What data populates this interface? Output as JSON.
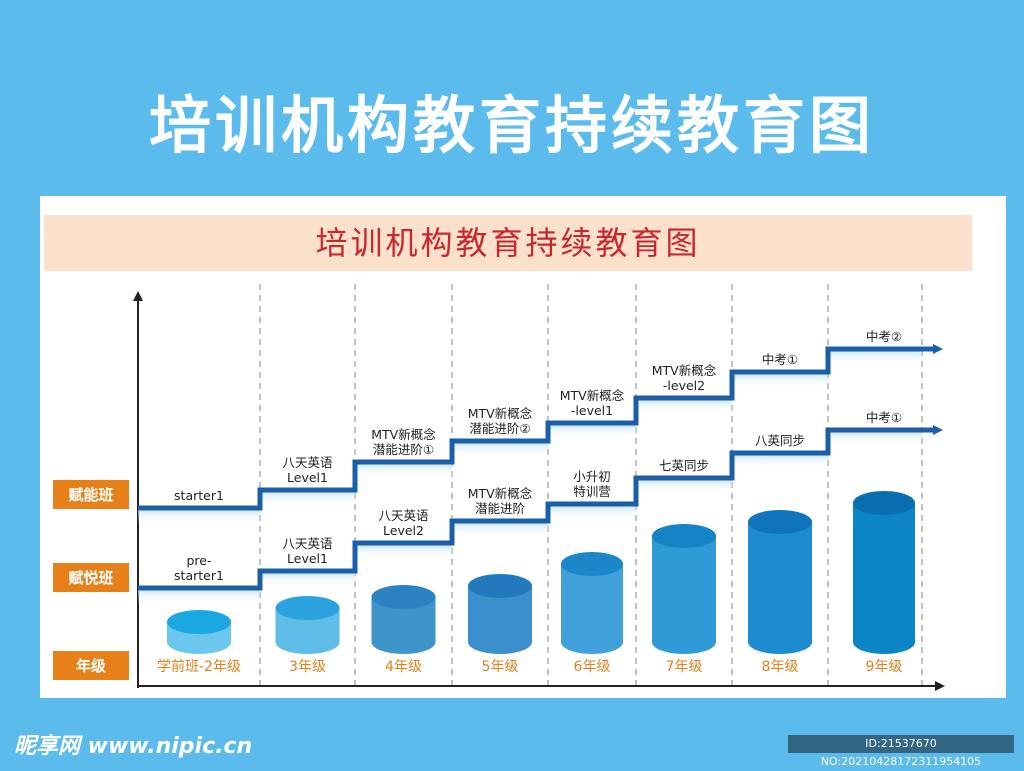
{
  "page": {
    "title": "培训机构教育持续教育图"
  },
  "banner": {
    "title": "培训机构教育持续教育图"
  },
  "row_labels": [
    "赋能班",
    "赋悦班",
    "年级"
  ],
  "grades": [
    "学前班-2年级",
    "3年级",
    "4年级",
    "5年级",
    "6年级",
    "7年级",
    "8年级",
    "9年级"
  ],
  "upper_track": {
    "steps": [
      [
        "starter1"
      ],
      [
        "八天英语",
        "Level1"
      ],
      [
        "MTV新概念",
        "潜能进阶①"
      ],
      [
        "MTV新概念",
        "潜能进阶②"
      ],
      [
        "MTV新概念",
        "-level1"
      ],
      [
        "MTV新概念",
        "-level2"
      ],
      [
        "中考①"
      ],
      [
        "中考②"
      ]
    ]
  },
  "lower_track": {
    "steps": [
      [
        "pre-",
        "starter1"
      ],
      [
        "八天英语",
        "Level1"
      ],
      [
        "八天英语",
        "Level2"
      ],
      [
        "MTV新概念",
        "潜能进阶"
      ],
      [
        "小升初",
        "特训营"
      ],
      [
        "七英同步"
      ],
      [
        "八英同步"
      ],
      [
        "中考①"
      ]
    ]
  },
  "colors": {
    "background": "#5bbbed",
    "track": "#1a5fa8",
    "row_tag": "#e8801a",
    "grade_text": "#e8801a",
    "banner_text": "#c8272d"
  },
  "watermark": "昵享网 www.nipic.cn",
  "image_id": "ID:21537670 NO:20210428172311954105"
}
